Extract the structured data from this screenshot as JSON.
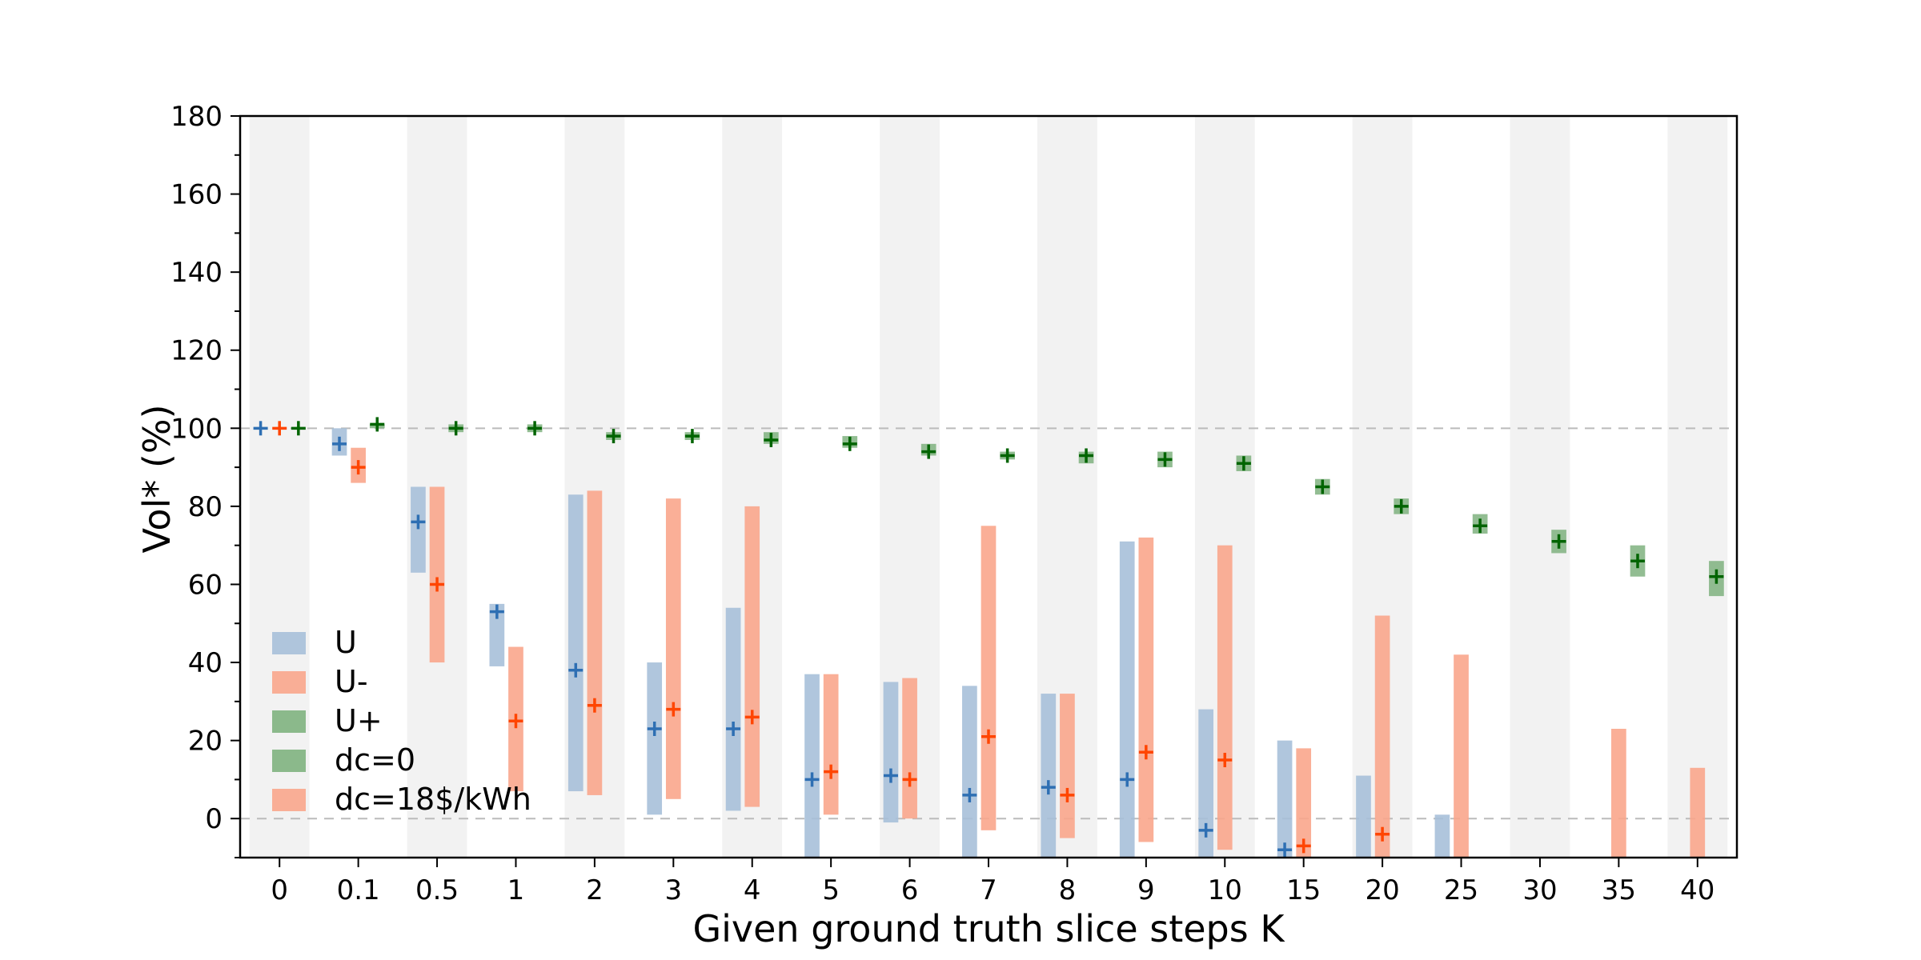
{
  "chart_data": {
    "type": "bar",
    "title": "",
    "xlabel": "Given ground truth slice steps K",
    "ylabel": "Vol* (%)",
    "ylim": [
      -10,
      180
    ],
    "yticks": [
      0,
      20,
      40,
      60,
      80,
      100,
      120,
      140,
      160,
      180
    ],
    "categories": [
      "0",
      "0.1",
      "0.5",
      "1",
      "2",
      "3",
      "4",
      "5",
      "6",
      "7",
      "8",
      "9",
      "10",
      "15",
      "20",
      "25",
      "30",
      "35",
      "40"
    ],
    "reference_lines": [
      0,
      100
    ],
    "shaded_bands": "alternating columns (0, 0.5, 2, 4, 6, 8, 10, 20, 30, 40)",
    "colors": {
      "U_bar": "#a7c0d9",
      "U_marker": "#2e6fb3",
      "Uminus_bar": "#f9a68c",
      "Uminus_marker": "#ff4500",
      "Uplus_bar": "#7fb27f",
      "Uplus_marker": "#006400",
      "band": "#f2f2f2",
      "refline": "#bbbbbb"
    },
    "series": [
      {
        "name": "U",
        "offset": -1,
        "lower": [
          100,
          93,
          63,
          39,
          7,
          1,
          2,
          -10,
          -1,
          -10,
          -10,
          -10,
          -10,
          -10,
          -10,
          -10,
          null,
          null,
          null
        ],
        "upper": [
          100,
          100,
          85,
          55,
          83,
          40,
          54,
          37,
          35,
          34,
          32,
          71,
          28,
          20,
          11,
          1,
          null,
          null,
          null
        ],
        "mean": [
          100,
          96,
          76,
          53,
          38,
          23,
          23,
          10,
          11,
          6,
          8,
          10,
          -3,
          -8,
          null,
          null,
          null,
          null,
          null
        ]
      },
      {
        "name": "U-",
        "offset": 0,
        "lower": [
          100,
          86,
          40,
          7,
          6,
          5,
          3,
          1,
          0,
          -3,
          -5,
          -6,
          -8,
          -10,
          -10,
          -10,
          null,
          -10,
          -10
        ],
        "upper": [
          100,
          95,
          85,
          44,
          84,
          82,
          80,
          37,
          36,
          75,
          32,
          72,
          70,
          18,
          52,
          42,
          null,
          23,
          13
        ],
        "mean": [
          100,
          90,
          60,
          25,
          29,
          28,
          26,
          12,
          10,
          21,
          6,
          17,
          15,
          -7,
          -4,
          null,
          null,
          null,
          null
        ]
      },
      {
        "name": "U+",
        "offset": 1,
        "lower": [
          100,
          100,
          99,
          99,
          97,
          97,
          96,
          95,
          93,
          92,
          91,
          90,
          89,
          83,
          78,
          73,
          68,
          62,
          57
        ],
        "upper": [
          100,
          101,
          101,
          101,
          99,
          99,
          99,
          98,
          96,
          94,
          94,
          94,
          93,
          87,
          82,
          78,
          74,
          70,
          66
        ],
        "mean": [
          100,
          101,
          100,
          100,
          98,
          98,
          97,
          96,
          94,
          93,
          93,
          92,
          91,
          85,
          80,
          75,
          71,
          66,
          62
        ]
      }
    ],
    "legend": {
      "position": "lower-left",
      "entries": [
        {
          "label": "U",
          "color": "#a7c0d9"
        },
        {
          "label": "U-",
          "color": "#f9a68c"
        },
        {
          "label": "U+",
          "color": "#7fb27f"
        },
        {
          "label": "dc=0",
          "color": "#7fb27f"
        },
        {
          "label": "dc=18$/kWh",
          "color": "#f9a68c"
        }
      ]
    }
  }
}
